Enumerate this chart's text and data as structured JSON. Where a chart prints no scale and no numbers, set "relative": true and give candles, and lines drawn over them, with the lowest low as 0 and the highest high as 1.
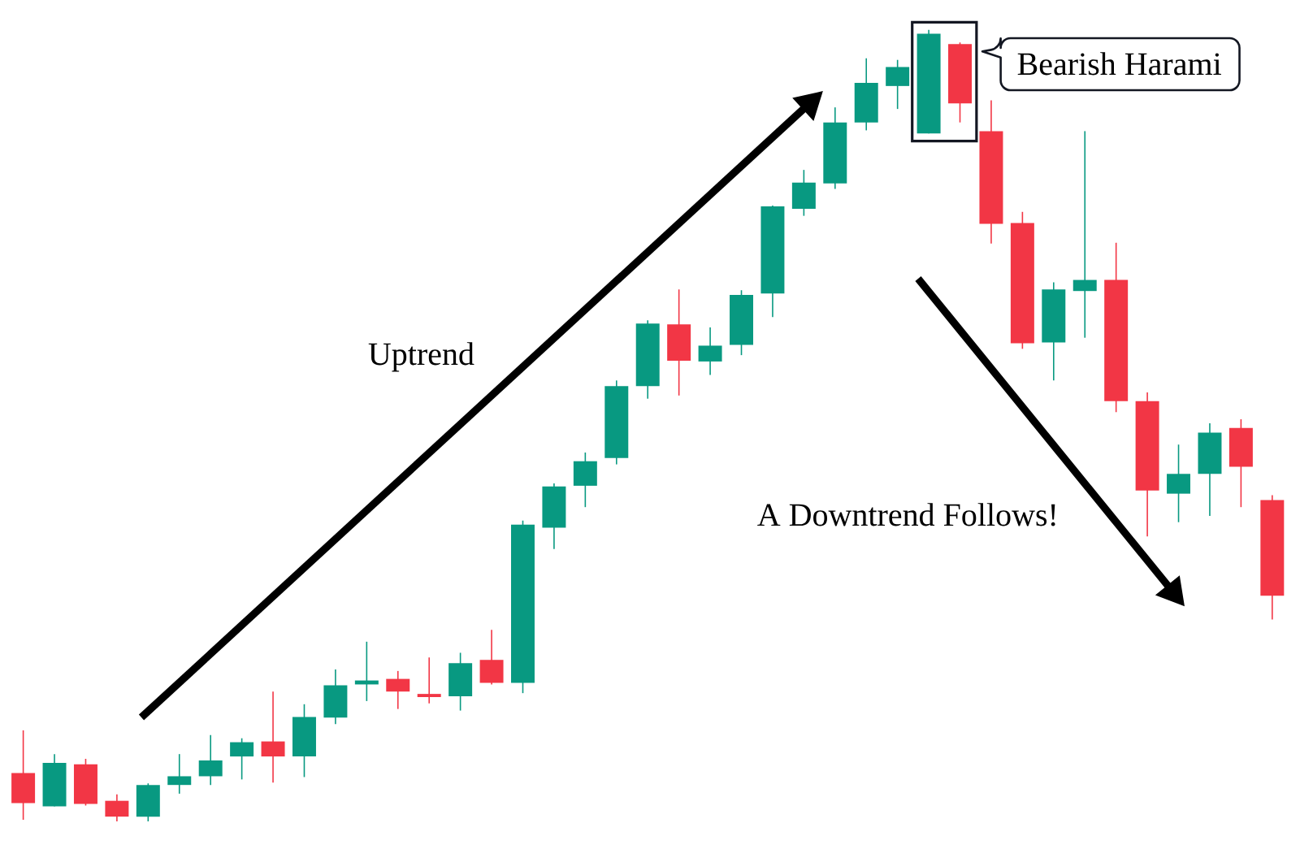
{
  "chart_data": {
    "type": "candlestick",
    "relative": true,
    "categories": [
      null,
      null,
      null,
      null,
      null,
      null,
      null,
      null,
      null,
      null,
      null,
      null,
      null,
      null,
      null,
      null,
      null,
      null,
      null,
      null,
      null,
      null,
      null,
      null,
      null,
      null,
      null,
      null,
      null,
      null,
      null,
      null,
      null,
      null,
      null,
      null,
      null,
      null,
      null,
      null,
      null
    ],
    "ohlc": [
      [
        0.061,
        0.115,
        0.002,
        0.023
      ],
      [
        0.019,
        0.085,
        0.019,
        0.074
      ],
      [
        0.072,
        0.079,
        0.02,
        0.022
      ],
      [
        0.026,
        0.034,
        0,
        0.006
      ],
      [
        0.006,
        0.048,
        0,
        0.046
      ],
      [
        0.046,
        0.085,
        0.035,
        0.057
      ],
      [
        0.057,
        0.109,
        0.046,
        0.077
      ],
      [
        0.082,
        0.105,
        0.053,
        0.1
      ],
      [
        0.101,
        0.164,
        0.049,
        0.082
      ],
      [
        0.082,
        0.148,
        0.056,
        0.132
      ],
      [
        0.131,
        0.192,
        0.123,
        0.172
      ],
      [
        0.173,
        0.227,
        0.152,
        0.178
      ],
      [
        0.18,
        0.19,
        0.142,
        0.164
      ],
      [
        0.161,
        0.207,
        0.149,
        0.157
      ],
      [
        0.158,
        0.213,
        0.14,
        0.2
      ],
      [
        0.204,
        0.242,
        0.173,
        0.175
      ],
      [
        0.175,
        0.38,
        0.162,
        0.375
      ],
      [
        0.371,
        0.427,
        0.344,
        0.423
      ],
      [
        0.424,
        0.466,
        0.397,
        0.455
      ],
      [
        0.459,
        0.557,
        0.451,
        0.55
      ],
      [
        0.55,
        0.633,
        0.534,
        0.629
      ],
      [
        0.628,
        0.672,
        0.538,
        0.582
      ],
      [
        0.581,
        0.624,
        0.564,
        0.601
      ],
      [
        0.602,
        0.671,
        0.589,
        0.665
      ],
      [
        0.667,
        0.778,
        0.637,
        0.777
      ],
      [
        0.774,
        0.823,
        0.765,
        0.807
      ],
      [
        0.806,
        0.902,
        0.799,
        0.883
      ],
      [
        0.883,
        0.964,
        0.873,
        0.933
      ],
      [
        0.929,
        0.962,
        0.9,
        0.953
      ],
      [
        0.869,
        1,
        0.869,
        0.995
      ],
      [
        0.982,
        0.984,
        0.883,
        0.907
      ],
      [
        0.872,
        0.911,
        0.73,
        0.755
      ],
      [
        0.756,
        0.77,
        0.597,
        0.604
      ],
      [
        0.605,
        0.681,
        0.557,
        0.672
      ],
      [
        0.67,
        0.872,
        0.611,
        0.684
      ],
      [
        0.684,
        0.731,
        0.517,
        0.531
      ],
      [
        0.531,
        0.542,
        0.36,
        0.418
      ],
      [
        0.414,
        0.476,
        0.378,
        0.439
      ],
      [
        0.439,
        0.503,
        0.386,
        0.491
      ],
      [
        0.497,
        0.508,
        0.397,
        0.448
      ],
      [
        0.406,
        0.412,
        0.255,
        0.285
      ]
    ],
    "colors": [
      "#f23645",
      "#089981",
      "#f23645",
      "#f23645",
      "#089981",
      "#089981",
      "#089981",
      "#089981",
      "#f23645",
      "#089981",
      "#089981",
      "#089981",
      "#f23645",
      "#f23645",
      "#089981",
      "#f23645",
      "#089981",
      "#089981",
      "#089981",
      "#089981",
      "#089981",
      "#f23645",
      "#089981",
      "#089981",
      "#089981",
      "#089981",
      "#089981",
      "#089981",
      "#089981",
      "#089981",
      "#f23645",
      "#f23645",
      "#f23645",
      "#089981",
      "#089981",
      "#f23645",
      "#f23645",
      "#089981",
      "#089981",
      "#f23645",
      "#f23645"
    ],
    "annotations": [
      "Bearish Harami",
      "Uptrend",
      "A Downtrend Follows!"
    ]
  }
}
